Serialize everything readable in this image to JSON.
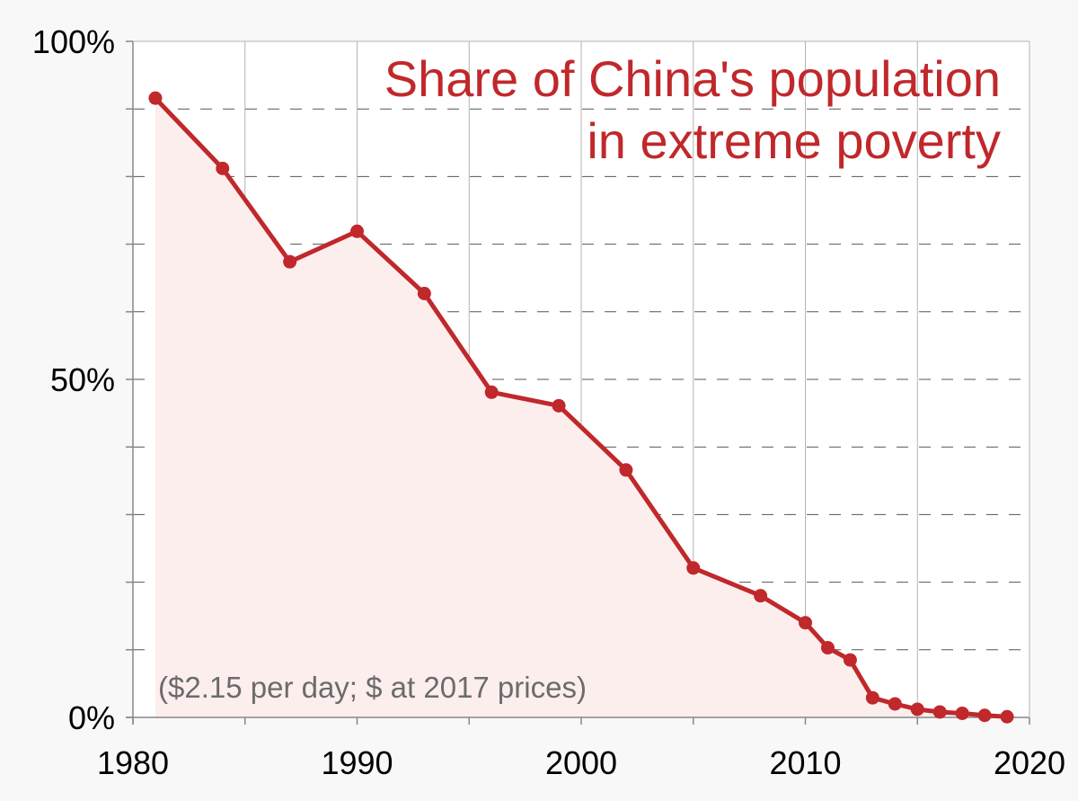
{
  "chart_data": {
    "type": "area",
    "title_lines": [
      "Share of China's population",
      "in extreme poverty"
    ],
    "note": "($2.15 per day; $ at 2017 prices)",
    "xlim": [
      1980,
      2020
    ],
    "ylim": [
      0,
      100
    ],
    "x_ticks": [
      1980,
      1990,
      2000,
      2010,
      2020
    ],
    "y_ticks": [
      0,
      50,
      100
    ],
    "y_tick_labels": [
      "0%",
      "50%",
      "100%"
    ],
    "grid": true,
    "colors": {
      "line": "#c0282b",
      "fill": "#fdeeee",
      "title": "#c0282b",
      "note": "#6b6b6b"
    },
    "series": [
      {
        "x": [
          1981,
          1984,
          1987,
          1990,
          1993,
          1996,
          1999,
          2002,
          2005,
          2008,
          2010,
          2011,
          2012,
          2013,
          2014,
          2015,
          2016,
          2017,
          2018,
          2019
        ],
        "values": [
          91.6,
          81.2,
          67.4,
          71.9,
          62.7,
          48.1,
          46.1,
          36.6,
          22.1,
          18.0,
          14.0,
          10.3,
          8.5,
          2.9,
          2.0,
          1.2,
          0.8,
          0.6,
          0.3,
          0.1
        ]
      }
    ]
  }
}
